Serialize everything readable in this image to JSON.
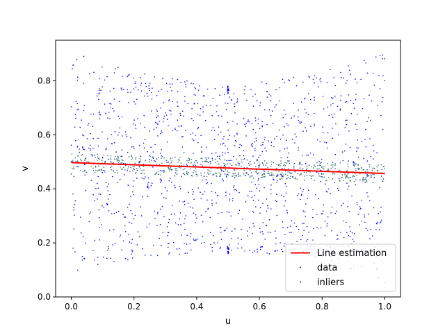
{
  "chart_data": {
    "type": "scatter",
    "title": "",
    "xlabel": "u",
    "ylabel": "v",
    "xlim": [
      -0.05,
      1.05
    ],
    "ylim": [
      0.0,
      0.95
    ],
    "xticks": [
      0.0,
      0.2,
      0.4,
      0.6,
      0.8,
      1.0
    ],
    "xtick_labels": [
      "0.0",
      "0.2",
      "0.4",
      "0.6",
      "0.8",
      "1.0"
    ],
    "yticks": [
      0.0,
      0.2,
      0.4,
      0.6,
      0.8
    ],
    "ytick_labels": [
      "0.0",
      "0.2",
      "0.4",
      "0.6",
      "0.8"
    ],
    "grid": false,
    "legend_position": "lower-right",
    "colors": {
      "line": "#ff0000",
      "data": "#0000ff",
      "inliers": "#2e6b5e"
    },
    "series": [
      {
        "name": "Line estimation",
        "kind": "line",
        "x": [
          0.0,
          1.0
        ],
        "y": [
          0.497,
          0.457
        ]
      },
      {
        "name": "data",
        "kind": "scatter",
        "notes": "approx. 1500 points filling an hourglass-shaped band (v between about 0.08 and 0.91 at u=0 and u=1, about 0.17 to 0.78 at u=0.5), with small vertical clusters at u=0.5 near v=0.76 and v=0.17",
        "envelope": {
          "u": [
            0.0,
            0.25,
            0.5,
            0.75,
            1.0
          ],
          "v_low": [
            0.08,
            0.15,
            0.17,
            0.15,
            0.05
          ],
          "v_high": [
            0.91,
            0.82,
            0.78,
            0.82,
            0.91
          ]
        },
        "clusters": [
          {
            "u": 0.5,
            "v": [
              0.75,
              0.78
            ]
          },
          {
            "u": 0.5,
            "v": [
              0.16,
              0.19
            ]
          }
        ]
      },
      {
        "name": "inliers",
        "kind": "scatter",
        "notes": "approx. 600 points within about ±0.035 of the estimated line",
        "band_halfwidth": 0.035
      }
    ]
  }
}
